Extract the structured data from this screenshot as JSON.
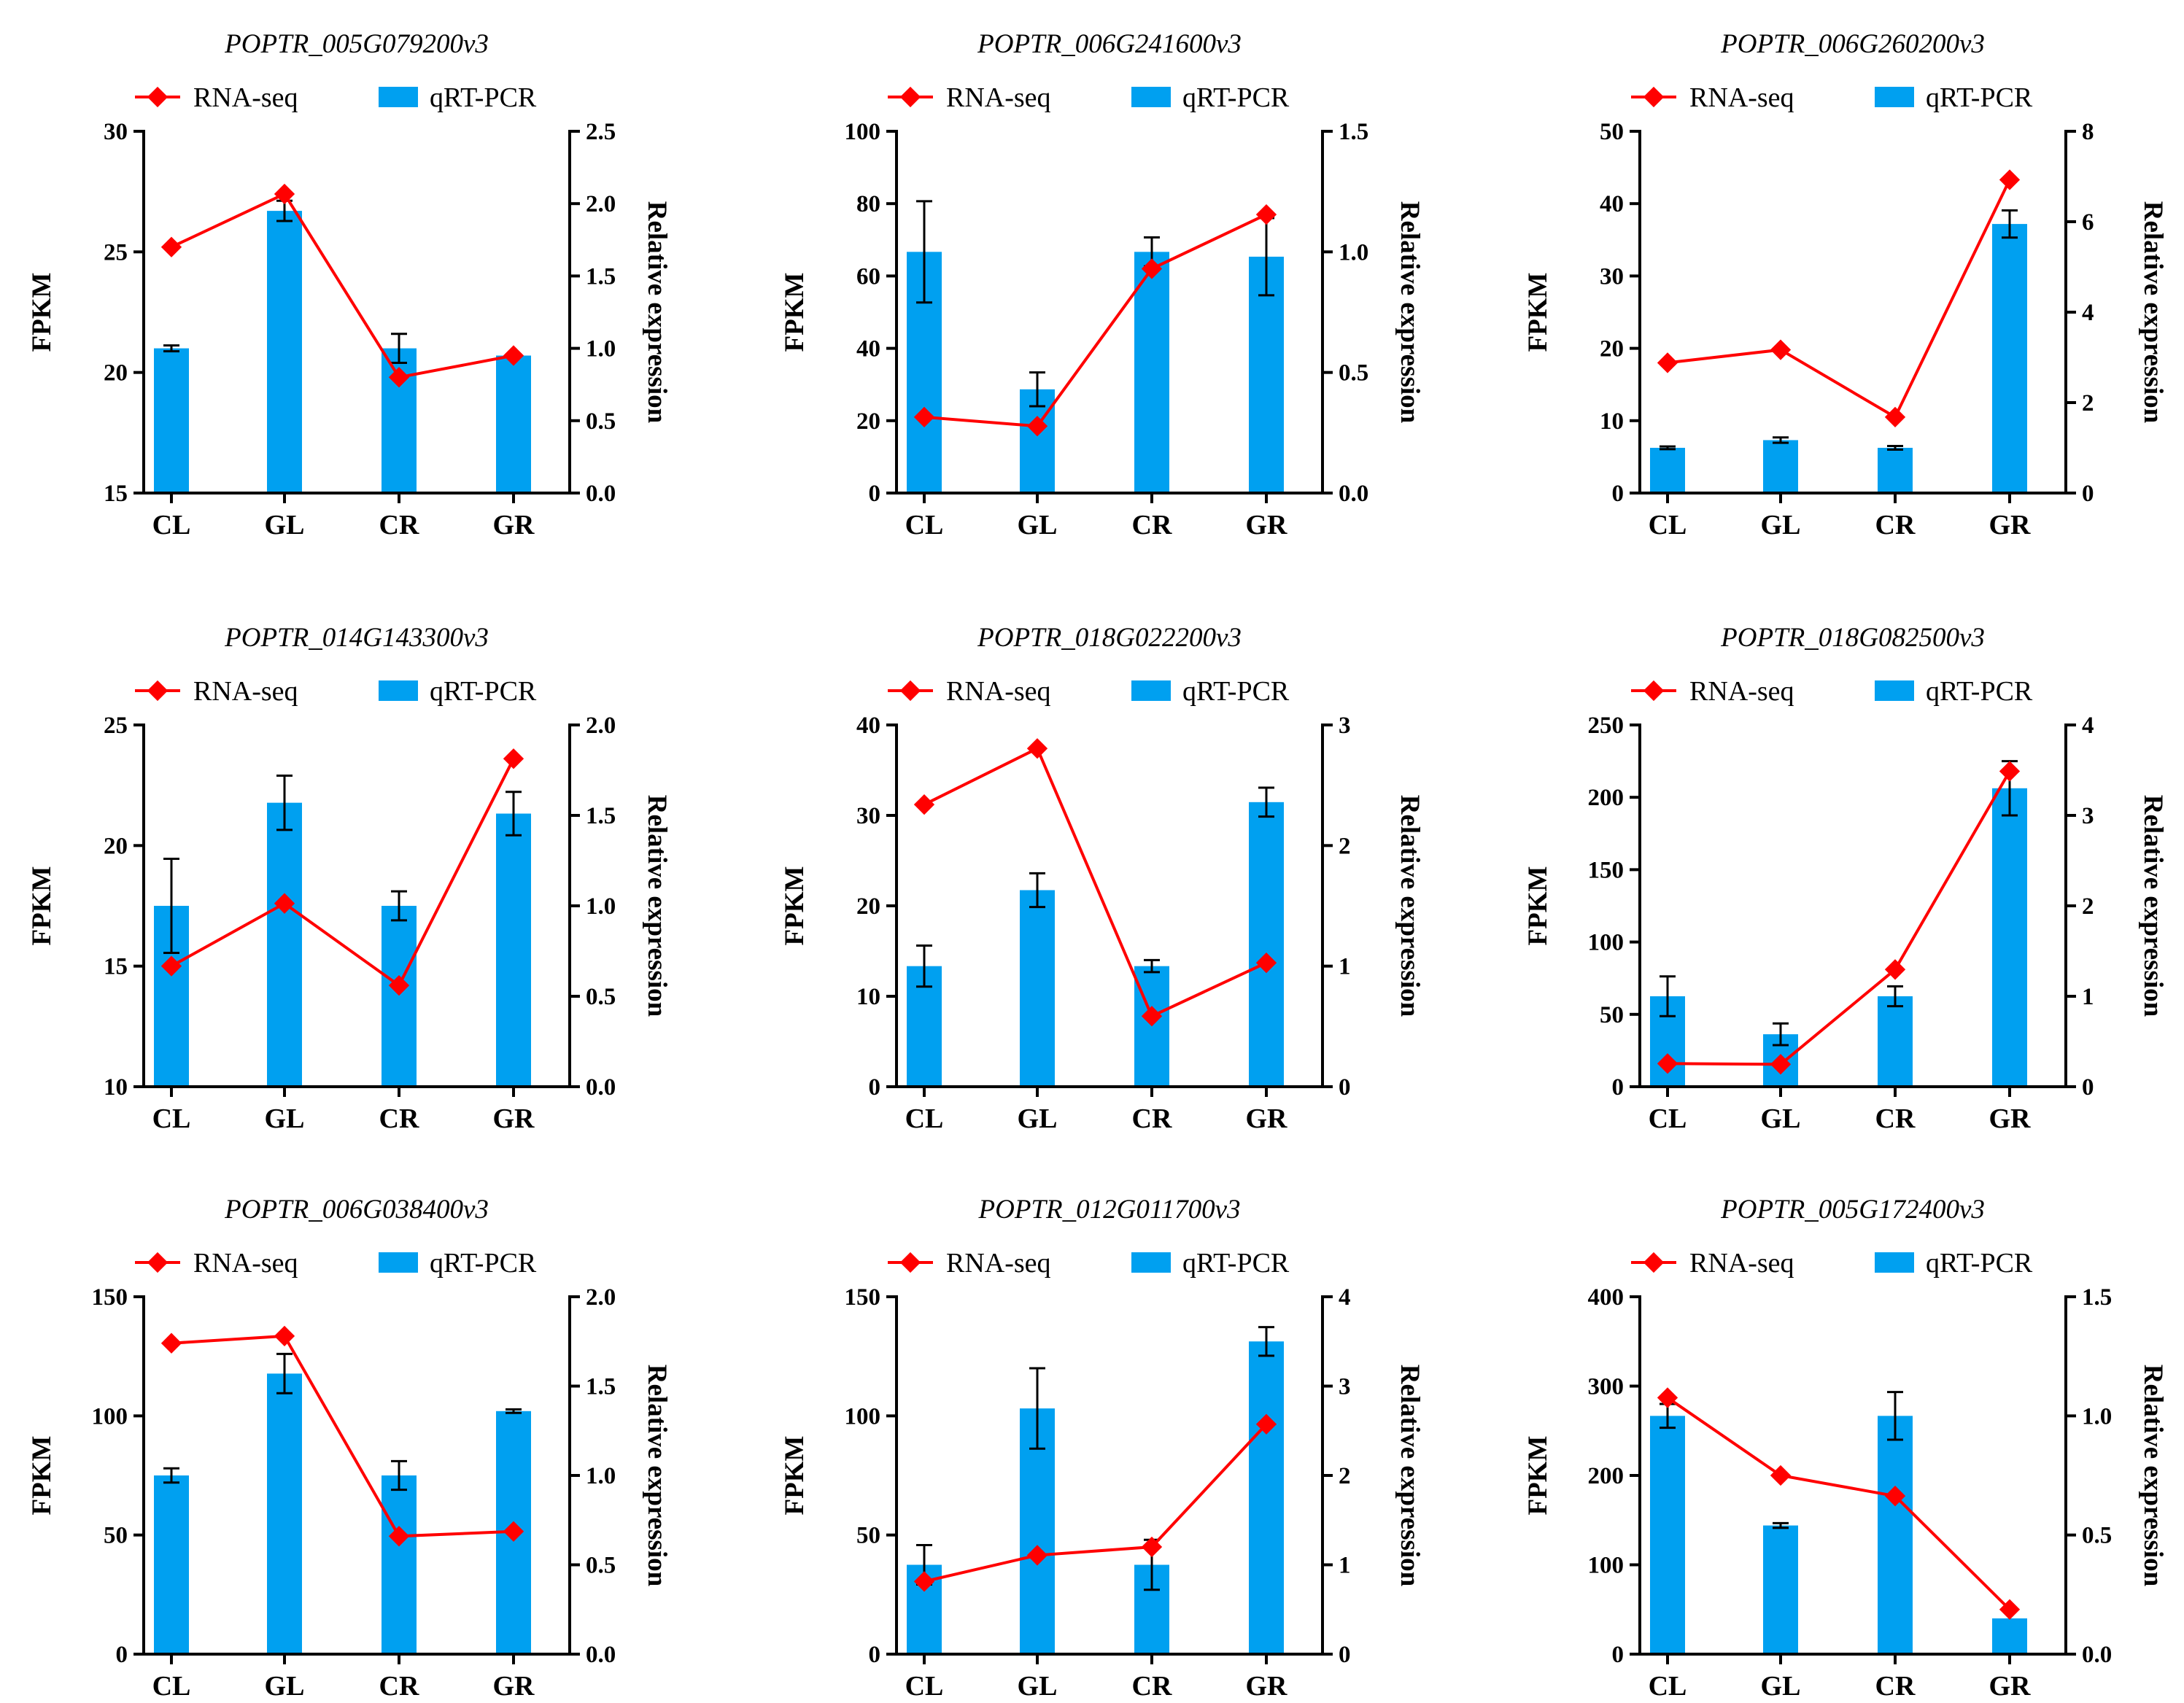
{
  "colors": {
    "bar": "#00A0F0",
    "line": "#FF0000",
    "axis": "#000000"
  },
  "chart_data": [
    {
      "type": "bar+line",
      "title": "POPTR_005G079200v3",
      "categories": [
        "CL",
        "GL",
        "CR",
        "GR"
      ],
      "legend": [
        "RNA-seq",
        "qRT-PCR"
      ],
      "ylabel": "FPKM",
      "y2label": "Relative expression",
      "ylim": [
        15,
        30
      ],
      "yticks": [
        15,
        20,
        25,
        30
      ],
      "yticklabels": [
        "15",
        "20",
        "25",
        "30"
      ],
      "y2lim": [
        0,
        2.5
      ],
      "y2ticks": [
        0,
        0.5,
        1,
        1.5,
        2,
        2.5
      ],
      "y2ticklabels": [
        "0.0",
        "0.5",
        "1.0",
        "1.5",
        "2.0",
        "2.5"
      ],
      "series": [
        {
          "name": "RNA-seq",
          "kind": "line",
          "axis": "left",
          "values": [
            25.2,
            27.4,
            19.8,
            20.7
          ]
        },
        {
          "name": "qRT-PCR",
          "kind": "bar",
          "axis": "right",
          "values": [
            1.0,
            1.95,
            1.0,
            0.95
          ],
          "errors": [
            0.02,
            0.07,
            0.1,
            0.0
          ]
        }
      ]
    },
    {
      "type": "bar+line",
      "title": "POPTR_006G241600v3",
      "categories": [
        "CL",
        "GL",
        "CR",
        "GR"
      ],
      "legend": [
        "RNA-seq",
        "qRT-PCR"
      ],
      "ylabel": "FPKM",
      "y2label": "Relative expression",
      "ylim": [
        0,
        100
      ],
      "yticks": [
        0,
        20,
        40,
        60,
        80,
        100
      ],
      "yticklabels": [
        "0",
        "20",
        "40",
        "60",
        "80",
        "100"
      ],
      "y2lim": [
        0,
        1.5
      ],
      "y2ticks": [
        0,
        0.5,
        1,
        1.5
      ],
      "y2ticklabels": [
        "0.0",
        "0.5",
        "1.0",
        "1.5"
      ],
      "series": [
        {
          "name": "RNA-seq",
          "kind": "line",
          "axis": "left",
          "values": [
            21,
            18.5,
            62,
            77
          ]
        },
        {
          "name": "qRT-PCR",
          "kind": "bar",
          "axis": "right",
          "values": [
            1.0,
            0.43,
            1.0,
            0.98
          ],
          "errors": [
            0.21,
            0.07,
            0.06,
            0.16
          ]
        }
      ]
    },
    {
      "type": "bar+line",
      "title": "POPTR_006G260200v3",
      "categories": [
        "CL",
        "GL",
        "CR",
        "GR"
      ],
      "legend": [
        "RNA-seq",
        "qRT-PCR"
      ],
      "ylabel": "FPKM",
      "y2label": "Relative expression",
      "ylim": [
        0,
        50
      ],
      "yticks": [
        0,
        10,
        20,
        30,
        40,
        50
      ],
      "yticklabels": [
        "0",
        "10",
        "20",
        "30",
        "40",
        "50"
      ],
      "y2lim": [
        0,
        8
      ],
      "y2ticks": [
        0,
        2,
        4,
        6,
        8
      ],
      "y2ticklabels": [
        "0",
        "2",
        "4",
        "6",
        "8"
      ],
      "series": [
        {
          "name": "RNA-seq",
          "kind": "line",
          "axis": "left",
          "values": [
            18,
            19.8,
            10.5,
            43.3
          ]
        },
        {
          "name": "qRT-PCR",
          "kind": "bar",
          "axis": "right",
          "values": [
            1.0,
            1.17,
            1.0,
            5.95
          ],
          "errors": [
            0.03,
            0.06,
            0.04,
            0.3
          ]
        }
      ]
    },
    {
      "type": "bar+line",
      "title": "POPTR_014G143300v3",
      "categories": [
        "CL",
        "GL",
        "CR",
        "GR"
      ],
      "legend": [
        "RNA-seq",
        "qRT-PCR"
      ],
      "ylabel": "FPKM",
      "y2label": "Relative expression",
      "ylim": [
        10,
        25
      ],
      "yticks": [
        10,
        15,
        20,
        25
      ],
      "yticklabels": [
        "10",
        "15",
        "20",
        "25"
      ],
      "y2lim": [
        0,
        2
      ],
      "y2ticks": [
        0,
        0.5,
        1,
        1.5,
        2
      ],
      "y2ticklabels": [
        "0.0",
        "0.5",
        "1.0",
        "1.5",
        "2.0"
      ],
      "series": [
        {
          "name": "RNA-seq",
          "kind": "line",
          "axis": "left",
          "values": [
            15,
            17.6,
            14.2,
            23.6
          ]
        },
        {
          "name": "qRT-PCR",
          "kind": "bar",
          "axis": "right",
          "values": [
            1.0,
            1.57,
            1.0,
            1.51
          ],
          "errors": [
            0.26,
            0.15,
            0.08,
            0.12
          ]
        }
      ]
    },
    {
      "type": "bar+line",
      "title": "POPTR_018G022200v3",
      "categories": [
        "CL",
        "GL",
        "CR",
        "GR"
      ],
      "legend": [
        "RNA-seq",
        "qRT-PCR"
      ],
      "ylabel": "FPKM",
      "y2label": "Relative expression",
      "ylim": [
        0,
        40
      ],
      "yticks": [
        0,
        10,
        20,
        30,
        40
      ],
      "yticklabels": [
        "0",
        "10",
        "20",
        "30",
        "40"
      ],
      "y2lim": [
        0,
        3
      ],
      "y2ticks": [
        0,
        1,
        2,
        3
      ],
      "y2ticklabels": [
        "0",
        "1",
        "2",
        "3"
      ],
      "series": [
        {
          "name": "RNA-seq",
          "kind": "line",
          "axis": "left",
          "values": [
            31.2,
            37.4,
            7.8,
            13.7
          ]
        },
        {
          "name": "qRT-PCR",
          "kind": "bar",
          "axis": "right",
          "values": [
            1.0,
            1.63,
            1.0,
            2.36
          ],
          "errors": [
            0.17,
            0.14,
            0.05,
            0.12
          ]
        }
      ]
    },
    {
      "type": "bar+line",
      "title": "POPTR_018G082500v3",
      "categories": [
        "CL",
        "GL",
        "CR",
        "GR"
      ],
      "legend": [
        "RNA-seq",
        "qRT-PCR"
      ],
      "ylabel": "FPKM",
      "y2label": "Relative expression",
      "ylim": [
        0,
        250
      ],
      "yticks": [
        0,
        50,
        100,
        150,
        200,
        250
      ],
      "yticklabels": [
        "0",
        "50",
        "100",
        "150",
        "200",
        "250"
      ],
      "y2lim": [
        0,
        4
      ],
      "y2ticks": [
        0,
        1,
        2,
        3,
        4
      ],
      "y2ticklabels": [
        "0",
        "1",
        "2",
        "3",
        "4"
      ],
      "series": [
        {
          "name": "RNA-seq",
          "kind": "line",
          "axis": "left",
          "values": [
            16,
            15.5,
            81,
            218
          ]
        },
        {
          "name": "qRT-PCR",
          "kind": "bar",
          "axis": "right",
          "values": [
            1.0,
            0.58,
            1.0,
            3.3
          ],
          "errors": [
            0.22,
            0.12,
            0.11,
            0.3
          ]
        }
      ]
    },
    {
      "type": "bar+line",
      "title": "POPTR_006G038400v3",
      "categories": [
        "CL",
        "GL",
        "CR",
        "GR"
      ],
      "legend": [
        "RNA-seq",
        "qRT-PCR"
      ],
      "ylabel": "FPKM",
      "y2label": "Relative expression",
      "ylim": [
        0,
        150
      ],
      "yticks": [
        0,
        50,
        100,
        150
      ],
      "yticklabels": [
        "0",
        "50",
        "100",
        "150"
      ],
      "y2lim": [
        0,
        2
      ],
      "y2ticks": [
        0,
        0.5,
        1,
        1.5,
        2
      ],
      "y2ticklabels": [
        "0.0",
        "0.5",
        "1.0",
        "1.5",
        "2.0"
      ],
      "series": [
        {
          "name": "RNA-seq",
          "kind": "line",
          "axis": "left",
          "values": [
            130.5,
            133.5,
            49.5,
            51.5
          ]
        },
        {
          "name": "qRT-PCR",
          "kind": "bar",
          "axis": "right",
          "values": [
            1.0,
            1.57,
            1.0,
            1.36
          ],
          "errors": [
            0.04,
            0.11,
            0.08,
            0.01
          ]
        }
      ]
    },
    {
      "type": "bar+line",
      "title": "POPTR_012G011700v3",
      "categories": [
        "CL",
        "GL",
        "CR",
        "GR"
      ],
      "legend": [
        "RNA-seq",
        "qRT-PCR"
      ],
      "ylabel": "FPKM",
      "y2label": "Relative expression",
      "ylim": [
        0,
        150
      ],
      "yticks": [
        0,
        50,
        100,
        150
      ],
      "yticklabels": [
        "0",
        "50",
        "100",
        "150"
      ],
      "y2lim": [
        0,
        4
      ],
      "y2ticks": [
        0,
        1,
        2,
        3,
        4
      ],
      "y2ticklabels": [
        "0",
        "1",
        "2",
        "3",
        "4"
      ],
      "series": [
        {
          "name": "RNA-seq",
          "kind": "line",
          "axis": "left",
          "values": [
            30.5,
            41.5,
            45,
            96.5
          ]
        },
        {
          "name": "qRT-PCR",
          "kind": "bar",
          "axis": "right",
          "values": [
            1.0,
            2.75,
            1.0,
            3.5
          ],
          "errors": [
            0.22,
            0.45,
            0.28,
            0.16
          ]
        }
      ]
    },
    {
      "type": "bar+line",
      "title": "POPTR_005G172400v3",
      "categories": [
        "CL",
        "GL",
        "CR",
        "GR"
      ],
      "legend": [
        "RNA-seq",
        "qRT-PCR"
      ],
      "ylabel": "FPKM",
      "y2label": "Relative expression",
      "ylim": [
        0,
        400
      ],
      "yticks": [
        0,
        100,
        200,
        300,
        400
      ],
      "yticklabels": [
        "0",
        "100",
        "200",
        "300",
        "400"
      ],
      "y2lim": [
        0,
        1.5
      ],
      "y2ticks": [
        0,
        0.5,
        1,
        1.5
      ],
      "y2ticklabels": [
        "0.0",
        "0.5",
        "1.0",
        "1.5"
      ],
      "series": [
        {
          "name": "RNA-seq",
          "kind": "line",
          "axis": "left",
          "values": [
            287,
            200,
            177,
            50
          ]
        },
        {
          "name": "qRT-PCR",
          "kind": "bar",
          "axis": "right",
          "values": [
            1.0,
            0.54,
            1.0,
            0.15
          ],
          "errors": [
            0.05,
            0.01,
            0.1,
            0.0
          ]
        }
      ]
    }
  ]
}
